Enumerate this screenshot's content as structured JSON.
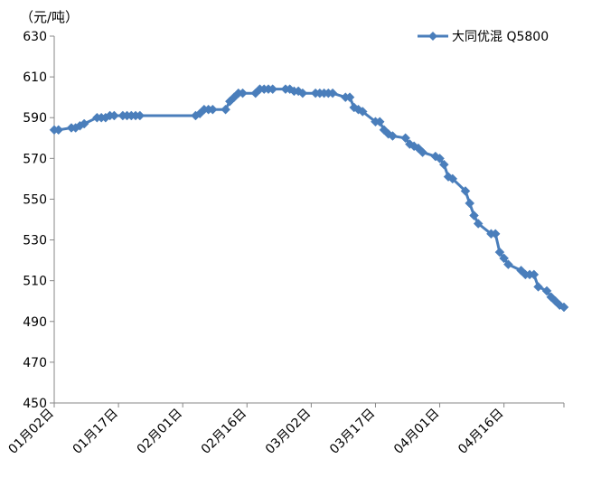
{
  "chart_data": {
    "type": "line",
    "unit_label": "（元/吨）",
    "ylim": [
      450,
      630
    ],
    "y_ticks": [
      "630",
      "610",
      "590",
      "570",
      "550",
      "530",
      "510",
      "490",
      "470",
      "450"
    ],
    "x_range": [
      "2024-01-02",
      "2024-04-30"
    ],
    "x_ticks": [
      {
        "date": "2024-01-02",
        "label": "01月02日"
      },
      {
        "date": "2024-01-17",
        "label": "01月17日"
      },
      {
        "date": "2024-02-01",
        "label": "02月01日"
      },
      {
        "date": "2024-02-16",
        "label": "02月16日"
      },
      {
        "date": "2024-03-02",
        "label": "03月02日"
      },
      {
        "date": "2024-03-17",
        "label": "03月17日"
      },
      {
        "date": "2024-04-01",
        "label": "04月01日"
      },
      {
        "date": "2024-04-16",
        "label": "04月16日"
      }
    ],
    "grid": false,
    "legend_position": "top-right",
    "line_color": "#4a7ebb",
    "series": [
      {
        "name": "大同优混 Q5800",
        "points": [
          [
            "2024-01-02",
            584
          ],
          [
            "2024-01-03",
            584
          ],
          [
            "2024-01-06",
            585
          ],
          [
            "2024-01-07",
            585
          ],
          [
            "2024-01-08",
            586
          ],
          [
            "2024-01-09",
            587
          ],
          [
            "2024-01-12",
            590
          ],
          [
            "2024-01-13",
            590
          ],
          [
            "2024-01-14",
            590
          ],
          [
            "2024-01-15",
            591
          ],
          [
            "2024-01-16",
            591
          ],
          [
            "2024-01-18",
            591
          ],
          [
            "2024-01-19",
            591
          ],
          [
            "2024-01-20",
            591
          ],
          [
            "2024-01-21",
            591
          ],
          [
            "2024-01-22",
            591
          ],
          [
            "2024-02-04",
            591
          ],
          [
            "2024-02-05",
            592
          ],
          [
            "2024-02-06",
            594
          ],
          [
            "2024-02-07",
            594
          ],
          [
            "2024-02-08",
            594
          ],
          [
            "2024-02-11",
            594
          ],
          [
            "2024-02-12",
            598
          ],
          [
            "2024-02-13",
            600
          ],
          [
            "2024-02-14",
            602
          ],
          [
            "2024-02-15",
            602
          ],
          [
            "2024-02-18",
            602
          ],
          [
            "2024-02-19",
            604
          ],
          [
            "2024-02-20",
            604
          ],
          [
            "2024-02-21",
            604
          ],
          [
            "2024-02-22",
            604
          ],
          [
            "2024-02-25",
            604
          ],
          [
            "2024-02-26",
            604
          ],
          [
            "2024-02-27",
            603
          ],
          [
            "2024-02-28",
            603
          ],
          [
            "2024-02-29",
            602
          ],
          [
            "2024-03-03",
            602
          ],
          [
            "2024-03-04",
            602
          ],
          [
            "2024-03-05",
            602
          ],
          [
            "2024-03-06",
            602
          ],
          [
            "2024-03-07",
            602
          ],
          [
            "2024-03-10",
            600
          ],
          [
            "2024-03-11",
            600
          ],
          [
            "2024-03-12",
            595
          ],
          [
            "2024-03-13",
            594
          ],
          [
            "2024-03-14",
            593
          ],
          [
            "2024-03-17",
            588
          ],
          [
            "2024-03-18",
            588
          ],
          [
            "2024-03-19",
            584
          ],
          [
            "2024-03-20",
            582
          ],
          [
            "2024-03-21",
            581
          ],
          [
            "2024-03-24",
            580
          ],
          [
            "2024-03-25",
            577
          ],
          [
            "2024-03-26",
            576
          ],
          [
            "2024-03-27",
            575
          ],
          [
            "2024-03-28",
            573
          ],
          [
            "2024-03-31",
            571
          ],
          [
            "2024-04-01",
            570
          ],
          [
            "2024-04-02",
            567
          ],
          [
            "2024-04-03",
            561
          ],
          [
            "2024-04-04",
            560
          ],
          [
            "2024-04-07",
            554
          ],
          [
            "2024-04-08",
            548
          ],
          [
            "2024-04-09",
            542
          ],
          [
            "2024-04-10",
            538
          ],
          [
            "2024-04-13",
            533
          ],
          [
            "2024-04-14",
            533
          ],
          [
            "2024-04-15",
            524
          ],
          [
            "2024-04-16",
            521
          ],
          [
            "2024-04-17",
            518
          ],
          [
            "2024-04-20",
            515
          ],
          [
            "2024-04-21",
            513
          ],
          [
            "2024-04-22",
            513
          ],
          [
            "2024-04-23",
            513
          ],
          [
            "2024-04-24",
            507
          ],
          [
            "2024-04-26",
            505
          ],
          [
            "2024-04-27",
            502
          ],
          [
            "2024-04-28",
            500
          ],
          [
            "2024-04-29",
            498
          ],
          [
            "2024-04-30",
            497
          ]
        ]
      }
    ]
  }
}
